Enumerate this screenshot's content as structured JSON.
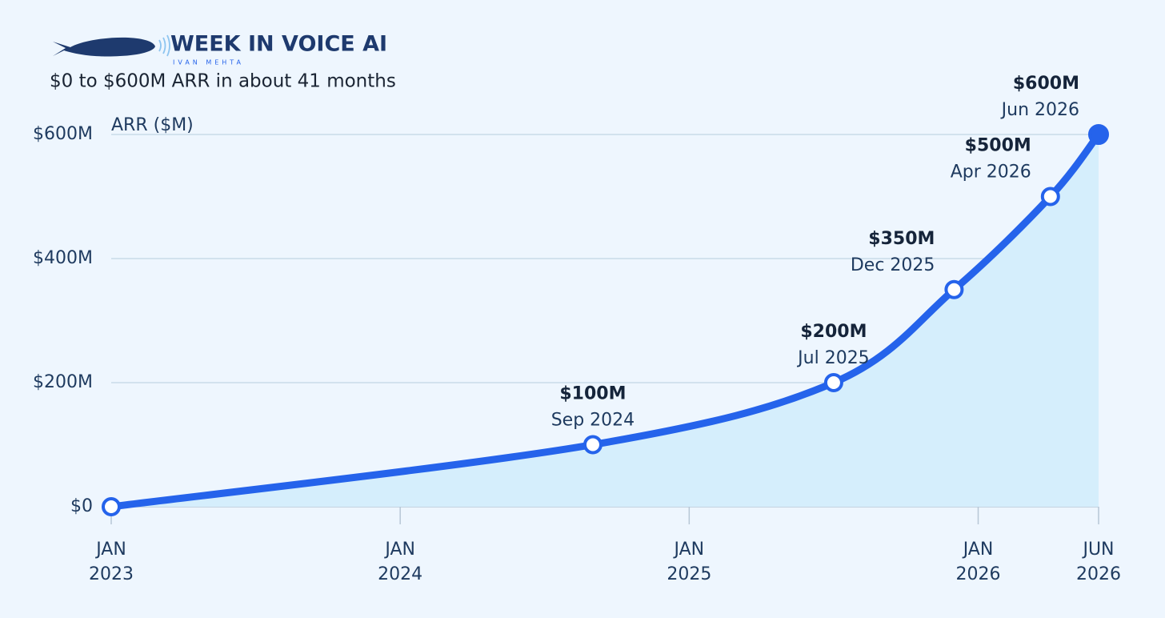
{
  "brand": {
    "name": "WEEK IN VOICE AI",
    "author": "IVAN MEHTA"
  },
  "chart_data": {
    "type": "area",
    "subtitle": "$0 to $600M ARR in about 41 months",
    "y_label": "ARR ($M)",
    "x": [
      "2023-01",
      "2024-09",
      "2025-07",
      "2025-12",
      "2026-04",
      "2026-06"
    ],
    "values": [
      0,
      100,
      200,
      350,
      500,
      600
    ],
    "value_labels": [
      null,
      "$100M",
      "$200M",
      "$350M",
      "$500M",
      "$600M"
    ],
    "point_labels": [
      null,
      "Sep 2024",
      "Jul 2025",
      "Dec 2025",
      "Apr 2026",
      "Jun 2026"
    ],
    "color": "#2563eb",
    "fill_color": "#d5eefc",
    "xlim": [
      "2023-01",
      "2026-06"
    ],
    "xticks": [
      {
        "value": "2023-01",
        "label": "JAN 2023"
      },
      {
        "value": "2024-01",
        "label": "JAN 2024"
      },
      {
        "value": "2025-01",
        "label": "JAN 2025"
      },
      {
        "value": "2026-01",
        "label": "JAN 2026"
      },
      {
        "value": "2026-06",
        "label": "JUN 2026"
      }
    ],
    "ylim": [
      0,
      600
    ],
    "yticks": [
      {
        "value": 0,
        "label": "$0"
      },
      {
        "value": 200,
        "label": "$200M"
      },
      {
        "value": 400,
        "label": "$400M"
      },
      {
        "value": 600,
        "label": "$600M"
      }
    ],
    "grid": true
  }
}
